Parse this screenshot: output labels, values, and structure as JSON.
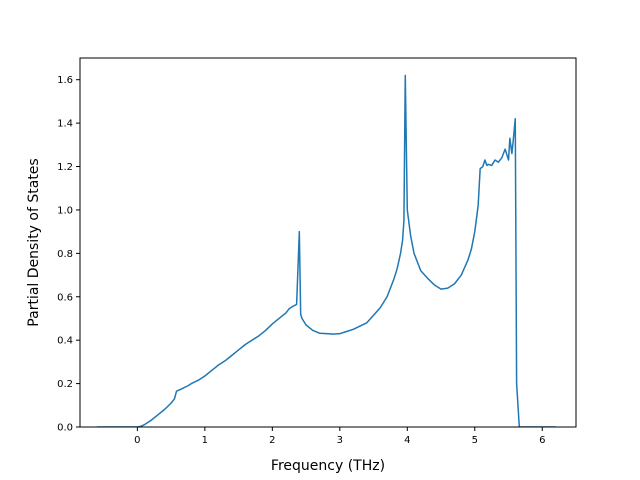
{
  "chart_data": {
    "type": "line",
    "xlabel": "Frequency (THz)",
    "ylabel": "Partial Density of States",
    "xlim": [
      -0.85,
      6.5
    ],
    "ylim": [
      0.0,
      1.7
    ],
    "xticks": [
      0,
      1,
      2,
      3,
      4,
      5,
      6
    ],
    "yticks": [
      0.0,
      0.2,
      0.4,
      0.6,
      0.8,
      1.0,
      1.2,
      1.4,
      1.6
    ],
    "xtick_labels": [
      "0",
      "1",
      "2",
      "3",
      "4",
      "5",
      "6"
    ],
    "ytick_labels": [
      "0.0",
      "0.2",
      "0.4",
      "0.6",
      "0.8",
      "1.0",
      "1.2",
      "1.4",
      "1.6"
    ],
    "grid": false,
    "legend": "none",
    "line_color": "#1f77b4",
    "series": [
      {
        "x": [
          -0.6,
          -0.3,
          0.0,
          0.05,
          0.1,
          0.2,
          0.3,
          0.4,
          0.5,
          0.55,
          0.58,
          0.65,
          0.75,
          0.8,
          0.9,
          1.0,
          1.1,
          1.2,
          1.3,
          1.4,
          1.5,
          1.6,
          1.7,
          1.8,
          1.9,
          2.0,
          2.1,
          2.2,
          2.25,
          2.3,
          2.36,
          2.4,
          2.42,
          2.44,
          2.5,
          2.6,
          2.7,
          2.8,
          2.9,
          3.0,
          3.1,
          3.2,
          3.3,
          3.4,
          3.5,
          3.6,
          3.7,
          3.8,
          3.85,
          3.9,
          3.93,
          3.95,
          3.97,
          4.0,
          4.05,
          4.1,
          4.2,
          4.3,
          4.4,
          4.5,
          4.6,
          4.7,
          4.8,
          4.9,
          4.95,
          5.0,
          5.05,
          5.08,
          5.1,
          5.12,
          5.15,
          5.18,
          5.2,
          5.25,
          5.3,
          5.35,
          5.4,
          5.45,
          5.48,
          5.5,
          5.52,
          5.55,
          5.57,
          5.6,
          5.62,
          5.66,
          5.7,
          6.2
        ],
        "y": [
          0.0,
          0.0,
          0.0,
          0.003,
          0.01,
          0.03,
          0.055,
          0.08,
          0.11,
          0.13,
          0.165,
          0.175,
          0.19,
          0.2,
          0.215,
          0.235,
          0.26,
          0.285,
          0.305,
          0.33,
          0.355,
          0.38,
          0.4,
          0.42,
          0.445,
          0.475,
          0.5,
          0.525,
          0.545,
          0.555,
          0.565,
          0.9,
          0.52,
          0.5,
          0.47,
          0.445,
          0.432,
          0.43,
          0.428,
          0.43,
          0.44,
          0.45,
          0.465,
          0.48,
          0.515,
          0.55,
          0.6,
          0.68,
          0.73,
          0.8,
          0.86,
          0.95,
          1.62,
          1.0,
          0.88,
          0.8,
          0.72,
          0.685,
          0.655,
          0.635,
          0.64,
          0.66,
          0.7,
          0.77,
          0.82,
          0.9,
          1.02,
          1.19,
          1.195,
          1.2,
          1.23,
          1.205,
          1.21,
          1.205,
          1.23,
          1.22,
          1.24,
          1.28,
          1.25,
          1.23,
          1.33,
          1.26,
          1.32,
          1.42,
          0.2,
          0.0,
          0.0,
          0.0
        ]
      }
    ]
  }
}
